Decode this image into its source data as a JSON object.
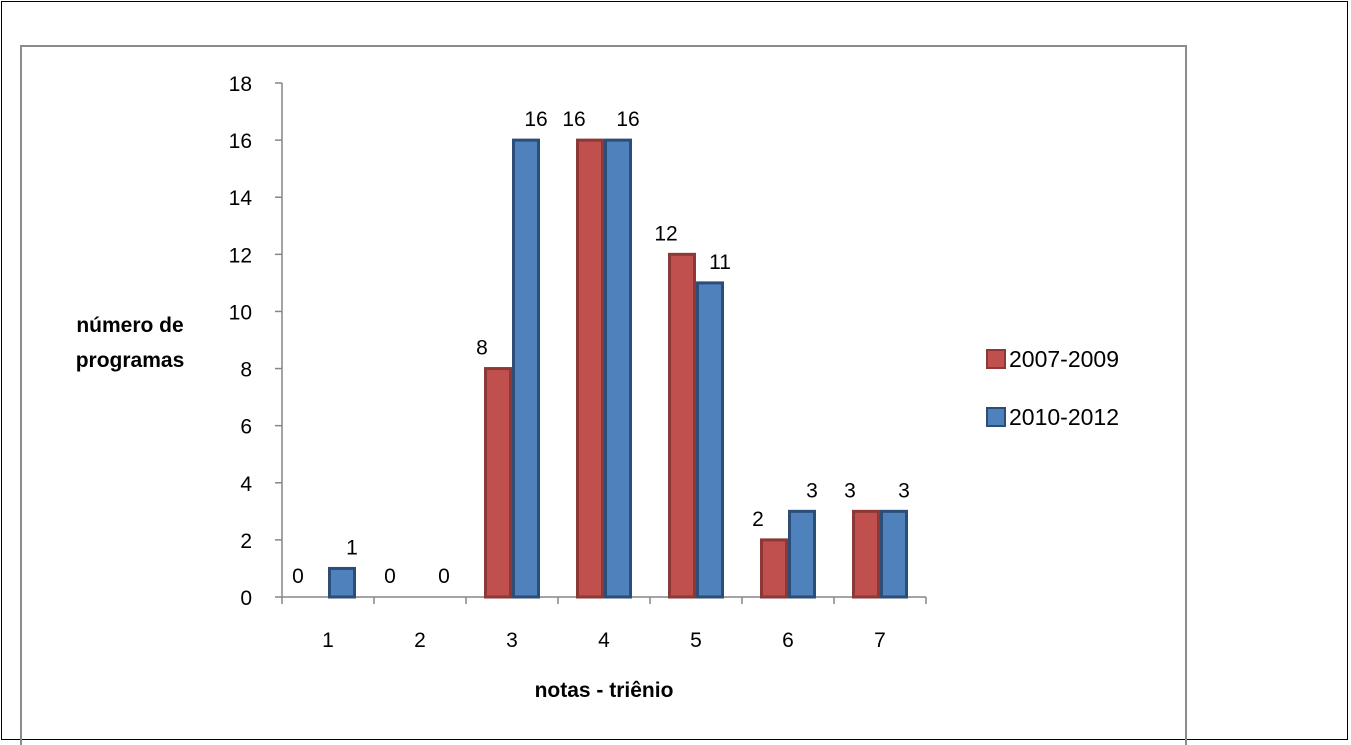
{
  "chart_data": {
    "type": "bar",
    "categories": [
      "1",
      "2",
      "3",
      "4",
      "5",
      "6",
      "7"
    ],
    "series": [
      {
        "name": "2007-2009",
        "values": [
          0,
          0,
          8,
          16,
          12,
          2,
          3
        ],
        "fill": "#c0504d",
        "stroke": "#8c3836"
      },
      {
        "name": "2010-2012",
        "values": [
          1,
          0,
          16,
          16,
          11,
          3,
          3
        ],
        "fill": "#4f81bd",
        "stroke": "#2c4d75"
      }
    ],
    "xlabel": "notas - triênio",
    "ylabel_lines": [
      "número de",
      "programas"
    ],
    "ylim": [
      0,
      18
    ],
    "yticks": [
      0,
      2,
      4,
      6,
      8,
      10,
      12,
      14,
      16,
      18
    ],
    "legend_position": "right",
    "grid": false
  }
}
